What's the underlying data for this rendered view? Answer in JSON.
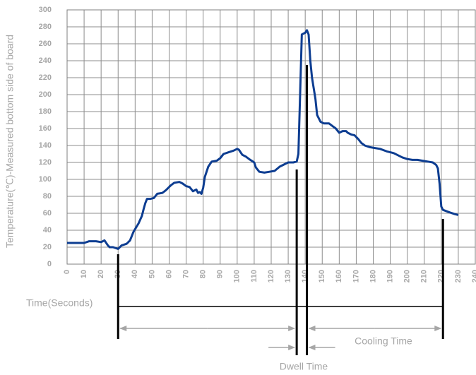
{
  "chart_data": {
    "type": "line",
    "y_label": "Temperature(℃)-Measured bottom side of board",
    "x_label": "Time(Seconds)",
    "annotations": [
      "Cooling Time",
      "Dwell Time"
    ],
    "x": [
      0,
      5,
      10,
      13,
      17,
      20,
      22,
      24,
      25,
      27,
      30,
      32,
      35,
      37,
      39,
      42,
      44,
      45,
      46,
      47,
      49,
      51,
      53,
      56,
      58,
      61,
      63,
      66,
      68,
      70,
      72,
      74,
      76,
      77,
      78,
      79,
      80,
      81,
      83,
      85,
      88,
      90,
      92,
      95,
      98,
      100,
      101,
      103,
      105,
      107,
      110,
      111,
      113,
      116,
      119,
      122,
      125,
      128,
      130,
      133,
      135,
      136,
      137,
      138,
      140,
      141,
      142,
      143,
      144,
      146,
      147,
      149,
      151,
      154,
      156,
      158,
      160,
      162,
      164,
      165,
      167,
      169,
      171,
      173,
      175,
      178,
      181,
      184,
      188,
      190,
      192,
      194,
      197,
      200,
      203,
      206,
      209,
      212,
      215,
      217,
      218,
      219,
      220,
      221,
      225,
      228,
      230
    ],
    "values": [
      25,
      25,
      25,
      27,
      27,
      26,
      28,
      22,
      20,
      20,
      18,
      22,
      24,
      28,
      38,
      48,
      57,
      65,
      72,
      77,
      77,
      78,
      83,
      84,
      87,
      93,
      96,
      97,
      95,
      92,
      91,
      86,
      88,
      84,
      85,
      83,
      90,
      103,
      115,
      121,
      122,
      125,
      130,
      132,
      134,
      136,
      135,
      129,
      127,
      124,
      120,
      114,
      109,
      108,
      109,
      110,
      115,
      118,
      120,
      120,
      121,
      130,
      200,
      271,
      273,
      276,
      271,
      240,
      220,
      195,
      176,
      168,
      166,
      166,
      163,
      160,
      155,
      157,
      157,
      155,
      153,
      152,
      148,
      143,
      140,
      138,
      137,
      136,
      133,
      132,
      131,
      129,
      126,
      124,
      123,
      123,
      122,
      121,
      120,
      117,
      113,
      95,
      68,
      64,
      61,
      59,
      58
    ],
    "color": "#0d3d91",
    "phase_boundaries": [
      30,
      135,
      141,
      221
    ],
    "xlim": [
      0,
      240
    ],
    "xticks": [
      0,
      10,
      20,
      30,
      40,
      50,
      60,
      70,
      80,
      90,
      100,
      110,
      120,
      130,
      140,
      150,
      160,
      170,
      180,
      190,
      200,
      210,
      220,
      230,
      240
    ],
    "ylim": [
      0,
      300
    ],
    "yticks": [
      0,
      20,
      40,
      60,
      80,
      100,
      120,
      140,
      160,
      180,
      200,
      220,
      240,
      260,
      280,
      300
    ],
    "grid": true
  }
}
